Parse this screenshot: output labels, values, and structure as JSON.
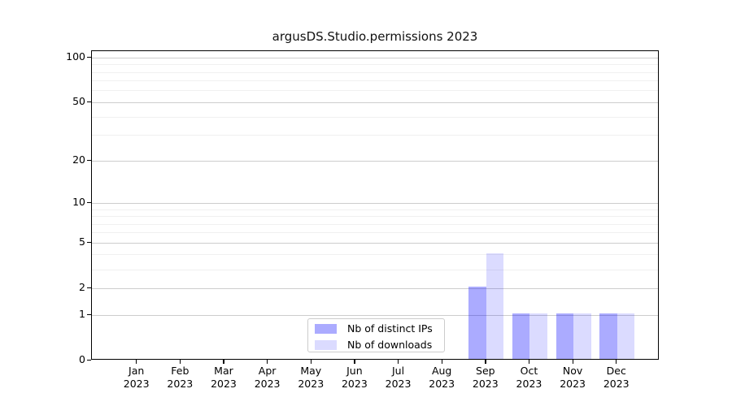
{
  "chart_data": {
    "type": "bar",
    "title": "argusDS.Studio.permissions 2023",
    "categories": [
      "Jan 2023",
      "Feb 2023",
      "Mar 2023",
      "Apr 2023",
      "May 2023",
      "Jun 2023",
      "Jul 2023",
      "Aug 2023",
      "Sep 2023",
      "Oct 2023",
      "Nov 2023",
      "Dec 2023"
    ],
    "series": [
      {
        "name": "Nb of distinct IPs",
        "color": "rgba(0,0,255,0.33)",
        "solid_color": "#aaaaf7",
        "values": [
          0,
          0,
          0,
          0,
          0,
          0,
          0,
          0,
          2,
          1,
          1,
          1
        ]
      },
      {
        "name": "Nb of downloads",
        "color": "rgba(0,0,255,0.14)",
        "solid_color": "#dcdcf8",
        "values": [
          0,
          0,
          0,
          0,
          0,
          0,
          0,
          0,
          4,
          1,
          1,
          1
        ]
      }
    ],
    "xlabel": "",
    "ylabel": "",
    "yscale": "log1p",
    "ylim": [
      0,
      111
    ],
    "yticks": [
      0,
      1,
      2,
      5,
      10,
      20,
      50,
      100
    ],
    "minor_yticks": [
      3,
      4,
      6,
      7,
      8,
      9,
      30,
      40,
      60,
      70,
      80,
      90
    ],
    "grid": true,
    "grid_major_color": "#cdcdcd",
    "grid_minor_color": "#f0f0f0",
    "spine_color": "#000000",
    "legend_position": "lower center"
  }
}
